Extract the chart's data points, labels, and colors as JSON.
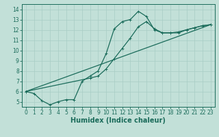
{
  "xlabel": "Humidex (Indice chaleur)",
  "bg_color": "#c2e0d8",
  "line_color": "#1a6b5a",
  "grid_color": "#a8ccc4",
  "xlim": [
    -0.5,
    23.5
  ],
  "ylim": [
    4.5,
    14.5
  ],
  "xticks": [
    0,
    1,
    2,
    3,
    4,
    5,
    6,
    7,
    8,
    9,
    10,
    11,
    12,
    13,
    14,
    15,
    16,
    17,
    18,
    19,
    20,
    21,
    22,
    23
  ],
  "yticks": [
    5,
    6,
    7,
    8,
    9,
    10,
    11,
    12,
    13,
    14
  ],
  "line1_x": [
    0,
    1,
    2,
    3,
    4,
    5,
    6,
    7,
    8,
    9,
    10,
    11,
    12,
    13,
    14,
    15,
    16,
    17,
    18,
    19,
    20,
    21,
    22,
    23
  ],
  "line1_y": [
    6.0,
    5.8,
    5.1,
    4.7,
    5.0,
    5.2,
    5.2,
    7.0,
    7.5,
    8.0,
    9.7,
    12.1,
    12.8,
    13.0,
    13.8,
    13.3,
    12.0,
    11.7,
    11.7,
    11.7,
    12.0,
    12.2,
    12.4,
    12.5
  ],
  "line2_x": [
    0,
    23
  ],
  "line2_y": [
    6.0,
    12.5
  ],
  "line3_x": [
    0,
    8,
    9,
    10,
    11,
    12,
    13,
    14,
    15,
    16,
    17,
    18,
    19,
    20,
    21,
    22,
    23
  ],
  "line3_y": [
    6.0,
    7.3,
    7.5,
    8.2,
    9.2,
    10.2,
    11.2,
    12.3,
    12.8,
    12.1,
    11.7,
    11.7,
    11.8,
    12.0,
    12.2,
    12.4,
    12.5
  ],
  "font_size": 7,
  "tick_fontsize": 5.5
}
